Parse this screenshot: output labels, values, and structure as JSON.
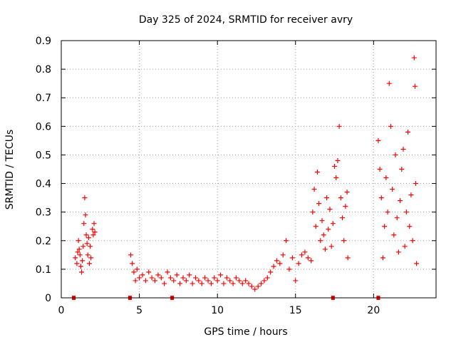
{
  "chart_data": {
    "type": "scatter",
    "title": "Day 325 of 2024, SRMTID for receiver avry",
    "xlabel": "GPS time / hours",
    "ylabel": "SRMTID / TECUs",
    "xlim": [
      0,
      24
    ],
    "ylim": [
      0,
      0.9
    ],
    "xticks": [
      0,
      5,
      10,
      15,
      20
    ],
    "xtick_labels": [
      "0",
      "5",
      "10",
      "15",
      "20"
    ],
    "yticks": [
      0,
      0.1,
      0.2,
      0.3,
      0.4,
      0.5,
      0.6,
      0.7,
      0.8,
      0.9
    ],
    "ytick_labels": [
      "0",
      "0.1",
      "0.2",
      "0.3",
      "0.4",
      "0.5",
      "0.6",
      "0.7",
      "0.8",
      "0.9"
    ],
    "grid": true,
    "marker": "+",
    "color": "#ff0000",
    "series": [
      {
        "name": "SRMTID",
        "points": [
          [
            0.9,
            0.14
          ],
          [
            1.0,
            0.12
          ],
          [
            1.05,
            0.16
          ],
          [
            1.1,
            0.2
          ],
          [
            1.15,
            0.17
          ],
          [
            1.2,
            0.15
          ],
          [
            1.25,
            0.11
          ],
          [
            1.3,
            0.09
          ],
          [
            1.35,
            0.13
          ],
          [
            1.4,
            0.18
          ],
          [
            1.45,
            0.26
          ],
          [
            1.5,
            0.35
          ],
          [
            1.55,
            0.29
          ],
          [
            1.6,
            0.22
          ],
          [
            1.65,
            0.19
          ],
          [
            1.7,
            0.15
          ],
          [
            1.75,
            0.21
          ],
          [
            1.8,
            0.12
          ],
          [
            1.85,
            0.18
          ],
          [
            1.9,
            0.14
          ],
          [
            2.0,
            0.24
          ],
          [
            2.05,
            0.22
          ],
          [
            2.1,
            0.26
          ],
          [
            2.15,
            0.23
          ],
          [
            4.45,
            0.15
          ],
          [
            4.55,
            0.12
          ],
          [
            4.65,
            0.09
          ],
          [
            4.75,
            0.06
          ],
          [
            4.85,
            0.1
          ],
          [
            5.0,
            0.07
          ],
          [
            5.2,
            0.08
          ],
          [
            5.4,
            0.06
          ],
          [
            5.6,
            0.09
          ],
          [
            5.8,
            0.07
          ],
          [
            6.0,
            0.06
          ],
          [
            6.2,
            0.08
          ],
          [
            6.4,
            0.07
          ],
          [
            6.6,
            0.05
          ],
          [
            6.8,
            0.09
          ],
          [
            7.0,
            0.07
          ],
          [
            7.2,
            0.06
          ],
          [
            7.4,
            0.08
          ],
          [
            7.6,
            0.05
          ],
          [
            7.8,
            0.07
          ],
          [
            8.0,
            0.06
          ],
          [
            8.2,
            0.08
          ],
          [
            8.4,
            0.05
          ],
          [
            8.6,
            0.07
          ],
          [
            8.8,
            0.06
          ],
          [
            9.0,
            0.05
          ],
          [
            9.2,
            0.07
          ],
          [
            9.4,
            0.06
          ],
          [
            9.6,
            0.05
          ],
          [
            9.8,
            0.07
          ],
          [
            10.0,
            0.06
          ],
          [
            10.2,
            0.08
          ],
          [
            10.4,
            0.05
          ],
          [
            10.6,
            0.07
          ],
          [
            10.8,
            0.06
          ],
          [
            11.0,
            0.05
          ],
          [
            11.2,
            0.07
          ],
          [
            11.4,
            0.06
          ],
          [
            11.6,
            0.05
          ],
          [
            11.8,
            0.06
          ],
          [
            12.0,
            0.05
          ],
          [
            12.2,
            0.04
          ],
          [
            12.4,
            0.03
          ],
          [
            12.6,
            0.04
          ],
          [
            12.8,
            0.05
          ],
          [
            13.0,
            0.06
          ],
          [
            13.2,
            0.07
          ],
          [
            13.4,
            0.09
          ],
          [
            13.6,
            0.11
          ],
          [
            13.8,
            0.13
          ],
          [
            14.0,
            0.12
          ],
          [
            14.2,
            0.15
          ],
          [
            14.4,
            0.2
          ],
          [
            14.6,
            0.1
          ],
          [
            14.8,
            0.14
          ],
          [
            15.0,
            0.06
          ],
          [
            15.2,
            0.12
          ],
          [
            15.4,
            0.15
          ],
          [
            15.6,
            0.16
          ],
          [
            15.8,
            0.14
          ],
          [
            16.0,
            0.13
          ],
          [
            16.1,
            0.3
          ],
          [
            16.2,
            0.38
          ],
          [
            16.3,
            0.25
          ],
          [
            16.4,
            0.44
          ],
          [
            16.5,
            0.33
          ],
          [
            16.6,
            0.2
          ],
          [
            16.7,
            0.27
          ],
          [
            16.8,
            0.22
          ],
          [
            16.9,
            0.17
          ],
          [
            17.0,
            0.35
          ],
          [
            17.1,
            0.24
          ],
          [
            17.2,
            0.31
          ],
          [
            17.3,
            0.18
          ],
          [
            17.4,
            0.26
          ],
          [
            17.5,
            0.46
          ],
          [
            17.6,
            0.42
          ],
          [
            17.7,
            0.48
          ],
          [
            17.8,
            0.6
          ],
          [
            17.9,
            0.35
          ],
          [
            18.0,
            0.28
          ],
          [
            18.1,
            0.2
          ],
          [
            18.2,
            0.32
          ],
          [
            18.3,
            0.37
          ],
          [
            18.35,
            0.14
          ],
          [
            20.3,
            0.55
          ],
          [
            20.4,
            0.45
          ],
          [
            20.5,
            0.35
          ],
          [
            20.6,
            0.14
          ],
          [
            20.7,
            0.25
          ],
          [
            20.8,
            0.42
          ],
          [
            20.9,
            0.3
          ],
          [
            21.0,
            0.75
          ],
          [
            21.1,
            0.6
          ],
          [
            21.2,
            0.38
          ],
          [
            21.3,
            0.22
          ],
          [
            21.4,
            0.5
          ],
          [
            21.5,
            0.28
          ],
          [
            21.6,
            0.16
          ],
          [
            21.7,
            0.34
          ],
          [
            21.8,
            0.45
          ],
          [
            21.9,
            0.52
          ],
          [
            22.0,
            0.18
          ],
          [
            22.1,
            0.3
          ],
          [
            22.2,
            0.58
          ],
          [
            22.3,
            0.25
          ],
          [
            22.4,
            0.36
          ],
          [
            22.5,
            0.2
          ],
          [
            22.6,
            0.84
          ],
          [
            22.65,
            0.74
          ],
          [
            22.7,
            0.4
          ],
          [
            22.75,
            0.12
          ]
        ]
      },
      {
        "name": "data-gap-markers",
        "points": [
          [
            0.8,
            0.0
          ],
          [
            4.4,
            0.0
          ],
          [
            7.1,
            0.0
          ],
          [
            17.4,
            0.0
          ],
          [
            20.3,
            0.0
          ]
        ]
      }
    ]
  }
}
